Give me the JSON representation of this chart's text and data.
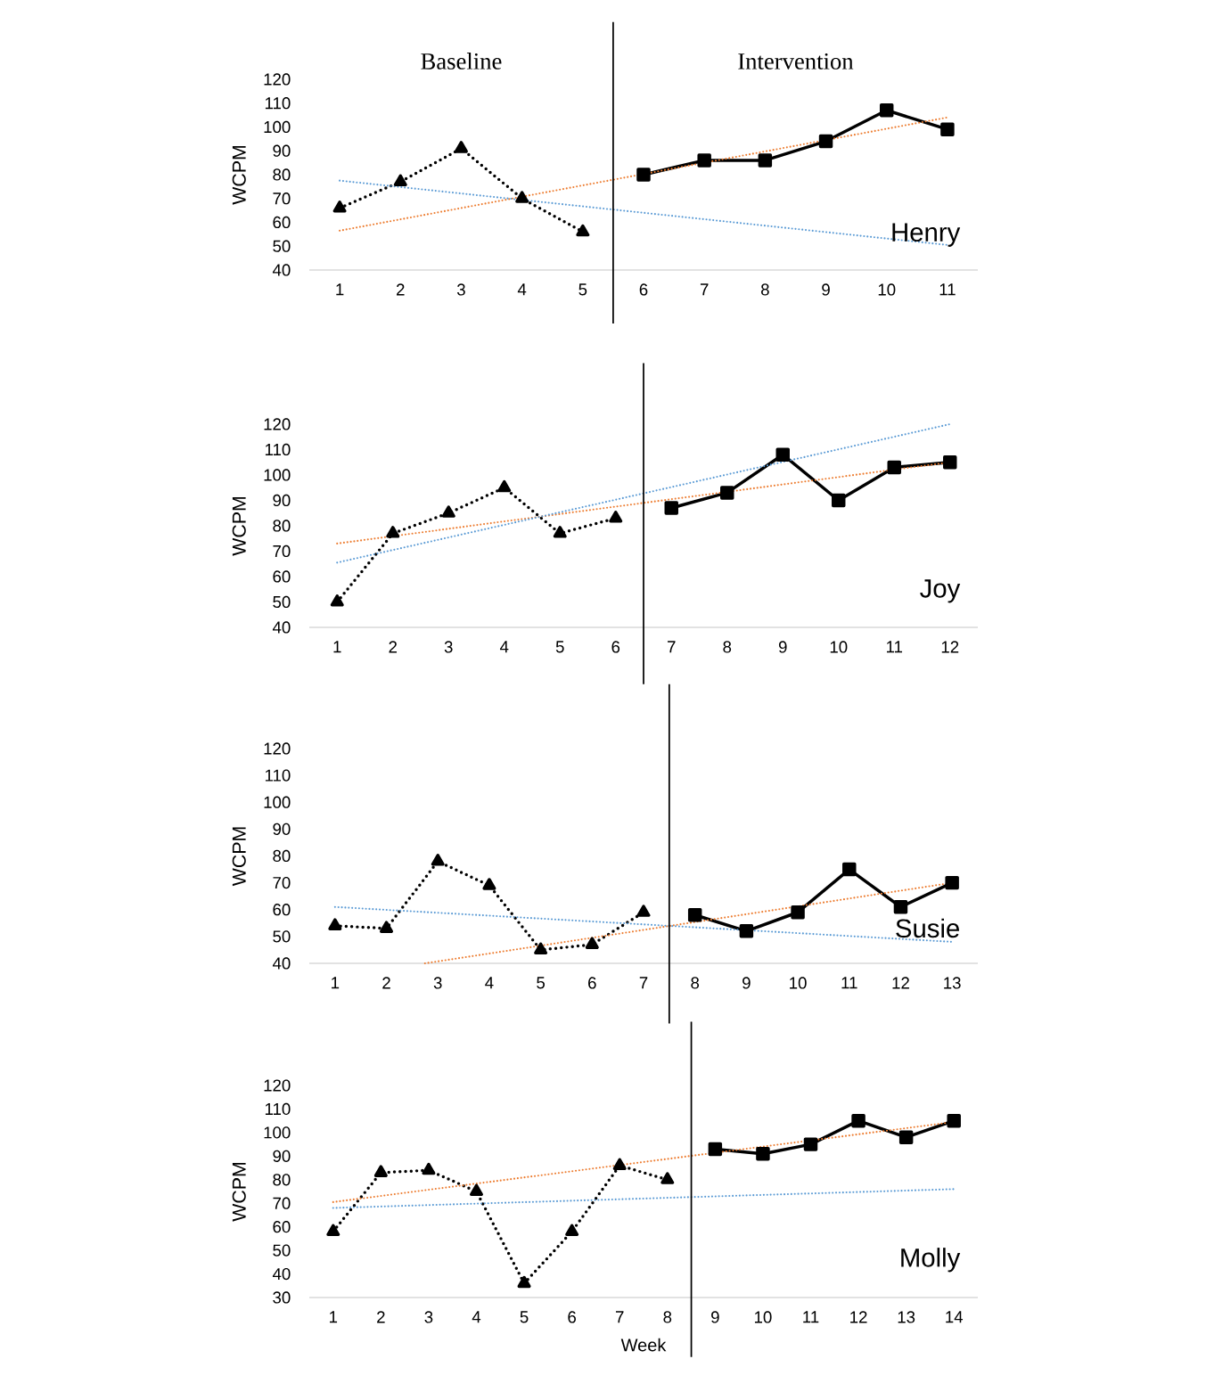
{
  "chart_data": [
    {
      "type": "line",
      "ylabel": "WCPM",
      "xlim": [
        0.5,
        11.5
      ],
      "ylim": [
        40,
        120
      ],
      "xticks": [
        1,
        2,
        3,
        4,
        5,
        6,
        7,
        8,
        9,
        10,
        11
      ],
      "yticks": [
        40,
        50,
        60,
        70,
        80,
        90,
        100,
        110,
        120
      ],
      "annotations": [
        "Baseline",
        "Intervention",
        "Henry"
      ],
      "ref_lines": [
        {
          "axis": "x",
          "value": 5.5,
          "color": "#000000"
        }
      ],
      "series": [
        {
          "color": "#000000",
          "marker": "triangle",
          "line_style": "dotted",
          "x": [
            1,
            2,
            3,
            4,
            5
          ],
          "values": [
            66,
            77,
            91,
            70,
            56
          ]
        },
        {
          "color": "#000000",
          "marker": "square",
          "line_style": "solid",
          "x": [
            6,
            7,
            8,
            9,
            10,
            11
          ],
          "values": [
            80,
            86,
            86,
            94,
            107,
            99
          ]
        },
        {
          "color": "#ed7d31",
          "marker": "none",
          "line_style": "dotted",
          "x": [
            1,
            11
          ],
          "values": [
            56.5,
            104
          ]
        },
        {
          "color": "#5b9bd5",
          "marker": "none",
          "line_style": "dotted",
          "x": [
            1,
            11
          ],
          "values": [
            77.5,
            50.5
          ]
        }
      ]
    },
    {
      "type": "line",
      "ylabel": "WCPM",
      "xlim": [
        0.5,
        12.5
      ],
      "ylim": [
        40,
        120
      ],
      "xticks": [
        1,
        2,
        3,
        4,
        5,
        6,
        7,
        8,
        9,
        10,
        11,
        12
      ],
      "yticks": [
        40,
        50,
        60,
        70,
        80,
        90,
        100,
        110,
        120
      ],
      "annotations": [
        "Joy"
      ],
      "ref_lines": [
        {
          "axis": "x",
          "value": 6.5,
          "color": "#000000"
        }
      ],
      "series": [
        {
          "color": "#000000",
          "marker": "triangle",
          "line_style": "dotted",
          "x": [
            1,
            2,
            3,
            4,
            5,
            6
          ],
          "values": [
            50,
            77,
            85,
            95,
            77,
            83
          ]
        },
        {
          "color": "#000000",
          "marker": "square",
          "line_style": "solid",
          "x": [
            7,
            8,
            9,
            10,
            11,
            12
          ],
          "values": [
            87,
            93,
            108,
            90,
            103,
            105
          ]
        },
        {
          "color": "#ed7d31",
          "marker": "none",
          "line_style": "dotted",
          "x": [
            1,
            12
          ],
          "values": [
            73,
            105
          ]
        },
        {
          "color": "#5b9bd5",
          "marker": "none",
          "line_style": "dotted",
          "x": [
            1,
            12
          ],
          "values": [
            65.5,
            120
          ]
        }
      ]
    },
    {
      "type": "line",
      "ylabel": "WCPM",
      "xlim": [
        0.5,
        13.5
      ],
      "ylim": [
        40,
        120
      ],
      "xticks": [
        1,
        2,
        3,
        4,
        5,
        6,
        7,
        8,
        9,
        10,
        11,
        12,
        13
      ],
      "yticks": [
        40,
        50,
        60,
        70,
        80,
        90,
        100,
        110,
        120
      ],
      "annotations": [
        "Susie"
      ],
      "ref_lines": [
        {
          "axis": "x",
          "value": 7.5,
          "color": "#000000"
        }
      ],
      "series": [
        {
          "color": "#000000",
          "marker": "triangle",
          "line_style": "dotted",
          "x": [
            1,
            2,
            3,
            4,
            5,
            6,
            7
          ],
          "values": [
            54,
            53,
            78,
            69,
            45,
            47,
            59
          ]
        },
        {
          "color": "#000000",
          "marker": "square",
          "line_style": "solid",
          "x": [
            8,
            9,
            10,
            11,
            12,
            13
          ],
          "values": [
            58,
            52,
            59,
            75,
            61,
            70
          ]
        },
        {
          "color": "#ed7d31",
          "marker": "none",
          "line_style": "dotted",
          "x": [
            2.75,
            13
          ],
          "values": [
            40,
            70
          ]
        },
        {
          "color": "#5b9bd5",
          "marker": "none",
          "line_style": "dotted",
          "x": [
            1,
            13
          ],
          "values": [
            61,
            48
          ]
        }
      ]
    },
    {
      "type": "line",
      "xlabel": "Week",
      "ylabel": "WCPM",
      "xlim": [
        0.5,
        14.5
      ],
      "ylim": [
        30,
        120
      ],
      "xticks": [
        1,
        2,
        3,
        4,
        5,
        6,
        7,
        8,
        9,
        10,
        11,
        12,
        13,
        14
      ],
      "yticks": [
        30,
        40,
        50,
        60,
        70,
        80,
        90,
        100,
        110,
        120
      ],
      "annotations": [
        "Molly"
      ],
      "ref_lines": [
        {
          "axis": "x",
          "value": 8.5,
          "color": "#000000"
        }
      ],
      "series": [
        {
          "color": "#000000",
          "marker": "triangle",
          "line_style": "dotted",
          "x": [
            1,
            2,
            3,
            4,
            5,
            6,
            7,
            8
          ],
          "values": [
            58,
            83,
            84,
            75,
            36,
            58,
            86,
            80
          ]
        },
        {
          "color": "#000000",
          "marker": "square",
          "line_style": "solid",
          "x": [
            9,
            10,
            11,
            12,
            13,
            14
          ],
          "values": [
            93,
            91,
            95,
            105,
            98,
            105
          ]
        },
        {
          "color": "#ed7d31",
          "marker": "none",
          "line_style": "dotted",
          "x": [
            1,
            14
          ],
          "values": [
            70.5,
            104.5
          ]
        },
        {
          "color": "#5b9bd5",
          "marker": "none",
          "line_style": "dotted",
          "x": [
            1,
            14
          ],
          "values": [
            68,
            76
          ]
        }
      ]
    }
  ]
}
